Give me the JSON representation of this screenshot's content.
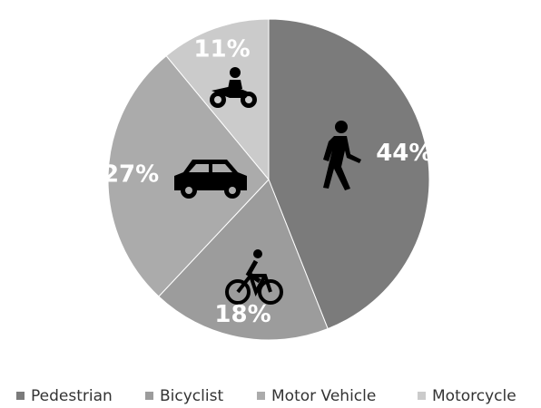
{
  "chart_data": {
    "type": "pie",
    "categories": [
      "Pedestrian",
      "Bicyclist",
      "Motor Vehicle",
      "Motorcycle"
    ],
    "values": [
      44,
      18,
      27,
      11
    ],
    "value_labels": [
      "44%",
      "18%",
      "27%",
      "11%"
    ],
    "colors": [
      "#7b7b7b",
      "#9c9c9c",
      "#ababab",
      "#cbcbcb"
    ],
    "legend": "bottom"
  }
}
